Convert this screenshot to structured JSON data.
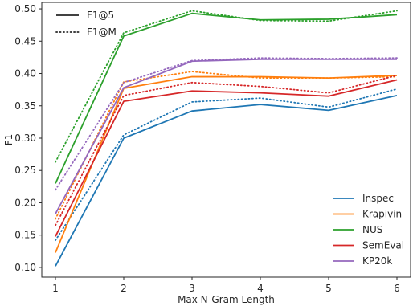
{
  "chart_data": {
    "type": "line",
    "xlabel": "Max N-Gram Length",
    "ylabel": "F1",
    "x": [
      1,
      2,
      3,
      4,
      5,
      6
    ],
    "xlim": [
      0.8,
      6.2
    ],
    "ylim": [
      0.085,
      0.51
    ],
    "yticks": [
      0.1,
      0.15,
      0.2,
      0.25,
      0.3,
      0.35,
      0.4,
      0.45,
      0.5
    ],
    "xticks": [
      1,
      2,
      3,
      4,
      5,
      6
    ],
    "grid": false,
    "datasets": [
      {
        "name": "Inspec",
        "color": "#1f77b4"
      },
      {
        "name": "Krapivin",
        "color": "#ff7f0e"
      },
      {
        "name": "NUS",
        "color": "#2ca02c"
      },
      {
        "name": "SemEval",
        "color": "#d62728"
      },
      {
        "name": "KP20k",
        "color": "#9467bd"
      }
    ],
    "metrics": [
      {
        "name": "F1@5",
        "dash": "solid"
      },
      {
        "name": "F1@M",
        "dash": "dotted"
      }
    ],
    "series": [
      {
        "dataset": "Inspec",
        "metric": "F1@5",
        "color": "#1f77b4",
        "dash": "solid",
        "values": [
          0.102,
          0.3,
          0.342,
          0.352,
          0.343,
          0.366
        ]
      },
      {
        "dataset": "Inspec",
        "metric": "F1@M",
        "color": "#1f77b4",
        "dash": "dotted",
        "values": [
          0.142,
          0.305,
          0.356,
          0.362,
          0.348,
          0.376
        ]
      },
      {
        "dataset": "Krapivin",
        "metric": "F1@5",
        "color": "#ff7f0e",
        "dash": "solid",
        "values": [
          0.123,
          0.377,
          0.395,
          0.395,
          0.393,
          0.397
        ]
      },
      {
        "dataset": "Krapivin",
        "metric": "F1@M",
        "color": "#ff7f0e",
        "dash": "dotted",
        "values": [
          0.175,
          0.387,
          0.403,
          0.393,
          0.393,
          0.395
        ]
      },
      {
        "dataset": "NUS",
        "metric": "F1@5",
        "color": "#2ca02c",
        "dash": "solid",
        "values": [
          0.23,
          0.458,
          0.493,
          0.483,
          0.484,
          0.491
        ]
      },
      {
        "dataset": "NUS",
        "metric": "F1@M",
        "color": "#2ca02c",
        "dash": "dotted",
        "values": [
          0.263,
          0.463,
          0.497,
          0.482,
          0.481,
          0.497
        ]
      },
      {
        "dataset": "SemEval",
        "metric": "F1@5",
        "color": "#d62728",
        "dash": "solid",
        "values": [
          0.148,
          0.357,
          0.373,
          0.37,
          0.365,
          0.39
        ]
      },
      {
        "dataset": "SemEval",
        "metric": "F1@M",
        "color": "#d62728",
        "dash": "dotted",
        "values": [
          0.165,
          0.366,
          0.386,
          0.38,
          0.37,
          0.397
        ]
      },
      {
        "dataset": "KP20k",
        "metric": "F1@5",
        "color": "#9467bd",
        "dash": "solid",
        "values": [
          0.183,
          0.378,
          0.419,
          0.422,
          0.422,
          0.422
        ]
      },
      {
        "dataset": "KP20k",
        "metric": "F1@M",
        "color": "#9467bd",
        "dash": "dotted",
        "values": [
          0.22,
          0.386,
          0.42,
          0.424,
          0.423,
          0.424
        ]
      }
    ],
    "legend_metrics_position": "top-left",
    "legend_datasets_position": "bottom-right"
  }
}
